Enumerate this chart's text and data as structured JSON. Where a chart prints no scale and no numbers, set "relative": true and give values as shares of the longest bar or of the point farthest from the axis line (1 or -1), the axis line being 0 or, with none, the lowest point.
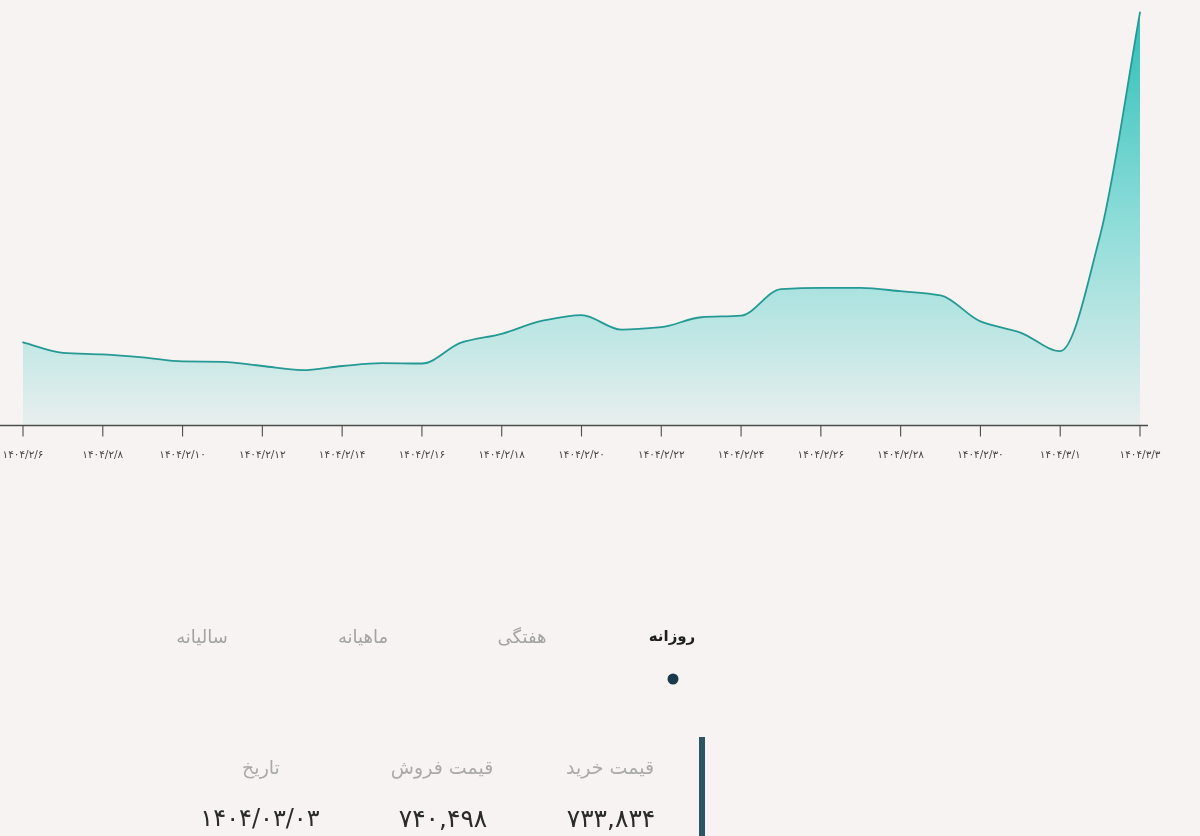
{
  "chart_data": {
    "type": "area",
    "relative": true,
    "color": "#2ebfb8",
    "categories": [
      "۱۴۰۴/۲/۶",
      null,
      "۱۴۰۴/۲/۸",
      null,
      "۱۴۰۴/۲/۱۰",
      null,
      "۱۴۰۴/۲/۱۲",
      null,
      "۱۴۰۴/۲/۱۴",
      null,
      "۱۴۰۴/۲/۱۶",
      null,
      "۱۴۰۴/۲/۱۸",
      null,
      "۱۴۰۴/۲/۲۰",
      null,
      "۱۴۰۴/۲/۲۲",
      null,
      "۱۴۰۴/۲/۲۴",
      null,
      "۱۴۰۴/۲/۲۶",
      null,
      "۱۴۰۴/۲/۲۸",
      null,
      "۱۴۰۴/۲/۳۰",
      null,
      "۱۴۰۴/۳/۱",
      null,
      "۱۴۰۴/۳/۳"
    ],
    "values": [
      0.201,
      0.176,
      0.172,
      0.165,
      0.155,
      0.154,
      0.144,
      0.134,
      0.144,
      0.151,
      0.15,
      0.201,
      0.222,
      0.253,
      0.267,
      0.232,
      0.238,
      0.262,
      0.266,
      0.33,
      0.333,
      0.333,
      0.325,
      0.315,
      0.252,
      0.225,
      0.18,
      0.46,
      1
    ],
    "tick_labels": "x",
    "annotations": [
      "روزانه",
      "هفتگی",
      "ماهیانه",
      "سالیانه",
      "قیمت خرید",
      "قیمت فروش",
      "تاریخ",
      "۷۳۳,۸۳۴",
      "۷۴۰,۴۹۸",
      "۱۴۰۴/۰۳/۰۳"
    ]
  }
}
